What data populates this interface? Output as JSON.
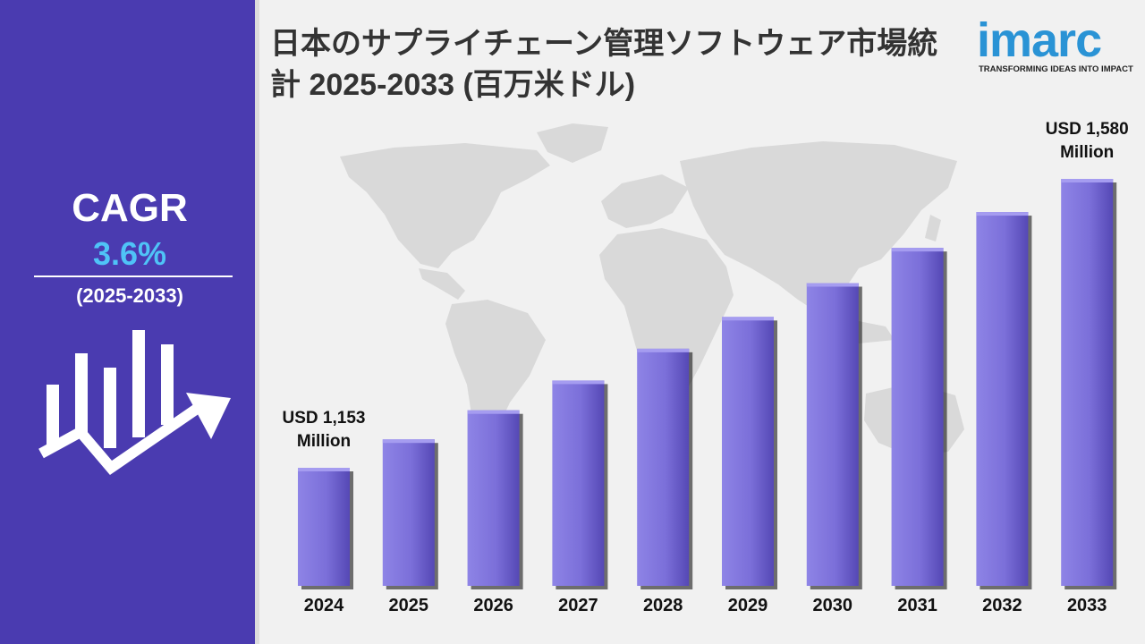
{
  "title": "日本のサプライチェーン管理ソフトウェア市場統計 2025-2033 (百万米ドル)",
  "logo": {
    "word": "imarc",
    "tagline": "TRANSFORMING IDEAS INTO IMPACT"
  },
  "cagr": {
    "label": "CAGR",
    "value": "3.6%",
    "period": "(2025-2033)"
  },
  "colors": {
    "panel": "#4a3bb0",
    "bar": "#7b6fd9",
    "cagr_value": "#4fc3f7",
    "logo": "#2a93d5"
  },
  "chart_data": {
    "type": "bar",
    "categories": [
      "2024",
      "2025",
      "2026",
      "2027",
      "2028",
      "2029",
      "2030",
      "2031",
      "2032",
      "2033"
    ],
    "values": [
      1153,
      1195,
      1238,
      1282,
      1329,
      1376,
      1426,
      1478,
      1531,
      1580
    ],
    "unit": "Million USD",
    "annotations": [
      {
        "category": "2024",
        "lines": [
          "USD 1,153",
          "Million"
        ]
      },
      {
        "category": "2033",
        "lines": [
          "USD 1,580",
          "Million"
        ]
      }
    ]
  }
}
